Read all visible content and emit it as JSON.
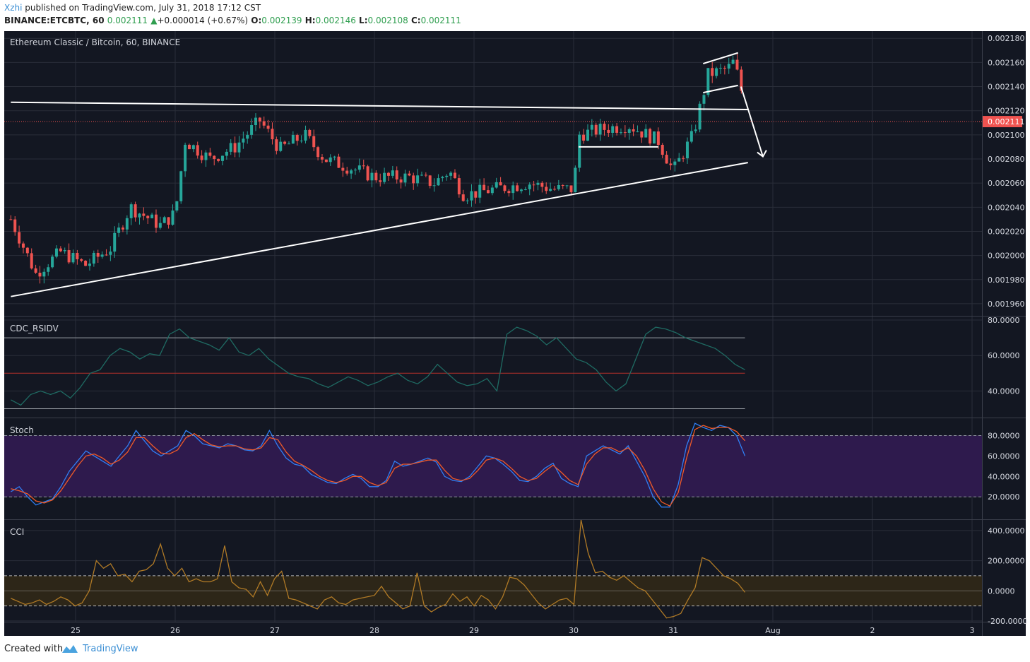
{
  "header": {
    "author": "Xzhi",
    "published": " published on TradingView.com, July 31, 2018 17:12 CST",
    "symbol": "BINANCE:ETCBTC, 60",
    "last": "0.002111",
    "arrow": "▲",
    "change": "+0.000014 (+0.67%)",
    "o_label": "O:",
    "o": "0.002139",
    "h_label": "H:",
    "h": "0.002146",
    "l_label": "L:",
    "l": "0.002108",
    "c_label": "C:",
    "c": "0.002111"
  },
  "footer": {
    "created_with": "Created with",
    "brand": "TradingView"
  },
  "colors": {
    "background": "#131722",
    "up": "#26a69a",
    "down": "#ef5350",
    "grid": "#2a2e39",
    "rsi_line": "#1f6b63",
    "stoch_k": "#2f7ff5",
    "stoch_d": "#f05a28",
    "stoch_band": "#2e1a4d",
    "cci_line": "#b07a26",
    "cci_band": "#2d2618"
  },
  "chart_data": [
    {
      "type": "candlestick",
      "title": "Ethereum Classic / Bitcoin, 60, BINANCE",
      "x_labels": [
        "25",
        "26",
        "27",
        "28",
        "29",
        "30",
        "31",
        "Aug",
        "2",
        "3"
      ],
      "y_ticks": [
        "0.002180",
        "0.002160",
        "0.002140",
        "0.002120",
        "0.002100",
        "0.002080",
        "0.002060",
        "0.002040",
        "0.002020",
        "0.002000",
        "0.001980",
        "0.001960"
      ],
      "ylim": [
        0.00195,
        0.002186
      ],
      "last_price": "0.002111",
      "close_path": [
        [
          24.35,
          0.00203
        ],
        [
          24.6,
          0.001985
        ],
        [
          24.85,
          0.002003
        ],
        [
          25.1,
          0.001992
        ],
        [
          25.35,
          0.002006
        ],
        [
          25.55,
          0.00204
        ],
        [
          25.85,
          0.002025
        ],
        [
          26.0,
          0.002035
        ],
        [
          26.1,
          0.002095
        ],
        [
          26.35,
          0.00208
        ],
        [
          26.6,
          0.00209
        ],
        [
          26.85,
          0.002112
        ],
        [
          27.05,
          0.002088
        ],
        [
          27.3,
          0.0021
        ],
        [
          27.5,
          0.00208
        ],
        [
          27.85,
          0.00207
        ],
        [
          28.0,
          0.002065
        ],
        [
          28.35,
          0.002065
        ],
        [
          28.6,
          0.00206
        ],
        [
          28.75,
          0.00207
        ],
        [
          28.9,
          0.00205
        ],
        [
          29.2,
          0.002055
        ],
        [
          29.55,
          0.00206
        ],
        [
          29.8,
          0.002055
        ],
        [
          30.0,
          0.002055
        ],
        [
          30.05,
          0.0021
        ],
        [
          30.3,
          0.002105
        ],
        [
          30.55,
          0.002108
        ],
        [
          30.85,
          0.002095
        ],
        [
          31.0,
          0.00207
        ],
        [
          31.2,
          0.0021
        ],
        [
          31.35,
          0.00215
        ],
        [
          31.55,
          0.002155
        ],
        [
          31.6,
          0.00216
        ],
        [
          31.68,
          0.002142
        ],
        [
          31.7,
          0.002111
        ]
      ],
      "trendlines": [
        {
          "from": [
            24.35,
            0.001966
          ],
          "to": [
            31.75,
            0.002077
          ]
        },
        {
          "from": [
            24.35,
            0.002127
          ],
          "to": [
            31.75,
            0.002121
          ]
        },
        {
          "from": [
            30.05,
            0.00209
          ],
          "to": [
            30.85,
            0.00209
          ]
        },
        {
          "from": [
            31.3,
            0.002159
          ],
          "to": [
            31.65,
            0.002168
          ]
        },
        {
          "from": [
            31.3,
            0.002135
          ],
          "to": [
            31.65,
            0.002141
          ]
        }
      ],
      "arrow": {
        "from": [
          31.68,
          0.00214
        ],
        "to": [
          31.9,
          0.002082
        ]
      }
    },
    {
      "type": "line",
      "title": "CDC_RSIDV",
      "y_ticks": [
        "80.0000",
        "60.0000",
        "40.0000"
      ],
      "ylim": [
        25,
        82
      ],
      "levels": [
        30,
        50,
        70
      ],
      "values": [
        35,
        32,
        38,
        40,
        38,
        40,
        36,
        42,
        50,
        52,
        60,
        64,
        62,
        58,
        61,
        60,
        72,
        75,
        70,
        68,
        66,
        63,
        70,
        62,
        60,
        64,
        58,
        54,
        50,
        48,
        47,
        44,
        42,
        45,
        48,
        46,
        43,
        45,
        48,
        50,
        46,
        44,
        48,
        55,
        50,
        45,
        43,
        44,
        47,
        40,
        72,
        76,
        74,
        71,
        66,
        70,
        64,
        58,
        56,
        52,
        45,
        40,
        44,
        58,
        72,
        76,
        75,
        73,
        70,
        68,
        66,
        64,
        60,
        55,
        52
      ]
    },
    {
      "type": "line",
      "title": "Stoch",
      "y_ticks": [
        "80.0000",
        "60.0000",
        "40.0000",
        "20.0000"
      ],
      "ylim": [
        -2,
        97
      ],
      "band": [
        20,
        80
      ],
      "series": [
        {
          "values": [
            25,
            30,
            20,
            12,
            15,
            18,
            30,
            45,
            55,
            65,
            60,
            55,
            50,
            60,
            70,
            85,
            75,
            65,
            60,
            65,
            70,
            85,
            80,
            72,
            70,
            68,
            72,
            70,
            66,
            65,
            70,
            85,
            70,
            58,
            52,
            50,
            42,
            38,
            34,
            33,
            38,
            42,
            38,
            30,
            30,
            36,
            55,
            50,
            52,
            55,
            58,
            54,
            40,
            36,
            35,
            40,
            50,
            60,
            58,
            52,
            45,
            36,
            35,
            40,
            48,
            53,
            38,
            33,
            30,
            60,
            65,
            70,
            66,
            62,
            70,
            55,
            40,
            20,
            10,
            10,
            32,
            70,
            92,
            88,
            85,
            90,
            88,
            80,
            60
          ]
        },
        {
          "values": [
            28,
            26,
            23,
            16,
            14,
            17,
            26,
            38,
            50,
            60,
            62,
            58,
            52,
            56,
            64,
            78,
            78,
            70,
            63,
            62,
            66,
            78,
            82,
            76,
            71,
            69,
            70,
            70,
            67,
            66,
            68,
            78,
            76,
            64,
            55,
            51,
            46,
            40,
            36,
            34,
            36,
            40,
            40,
            34,
            31,
            34,
            48,
            52,
            52,
            54,
            56,
            56,
            46,
            38,
            36,
            38,
            46,
            56,
            58,
            55,
            48,
            40,
            36,
            38,
            45,
            51,
            44,
            36,
            32,
            52,
            62,
            68,
            68,
            64,
            68,
            60,
            46,
            28,
            15,
            11,
            24,
            58,
            86,
            90,
            87,
            88,
            88,
            84,
            75
          ]
        }
      ]
    },
    {
      "type": "line",
      "title": "CCI",
      "y_ticks": [
        "400.0000",
        "200.0000",
        "0.0000",
        "-200.0000"
      ],
      "ylim": [
        -205,
        470
      ],
      "levels": [
        100,
        0,
        -100
      ],
      "values": [
        -50,
        -70,
        -90,
        -80,
        -60,
        -90,
        -70,
        -40,
        -60,
        -100,
        -80,
        0,
        200,
        150,
        180,
        100,
        110,
        60,
        130,
        140,
        180,
        310,
        150,
        100,
        150,
        60,
        80,
        60,
        60,
        80,
        300,
        60,
        20,
        10,
        -40,
        60,
        -30,
        80,
        130,
        -50,
        -60,
        -80,
        -100,
        -120,
        -60,
        -40,
        -80,
        -90,
        -60,
        -50,
        -40,
        -30,
        30,
        -40,
        -80,
        -120,
        -100,
        120,
        -100,
        -140,
        -110,
        -90,
        -20,
        -70,
        -40,
        -100,
        -30,
        -60,
        -120,
        -40,
        90,
        80,
        40,
        -20,
        -80,
        -120,
        -90,
        -60,
        -50,
        -90,
        470,
        250,
        120,
        130,
        90,
        70,
        100,
        60,
        20,
        0,
        -60,
        -120,
        -180,
        -170,
        -150,
        -60,
        20,
        220,
        200,
        150,
        100,
        80,
        50,
        -10
      ]
    }
  ]
}
